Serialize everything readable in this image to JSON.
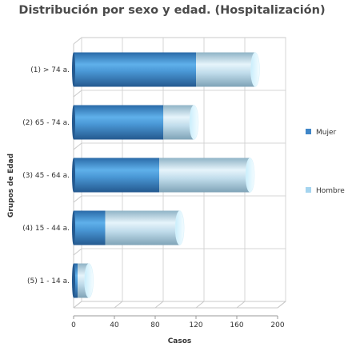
{
  "chart_data": {
    "type": "bar",
    "orientation": "horizontal",
    "stacked": true,
    "style": "3d-cylinder",
    "title": "Distribución por sexo y edad. (Hospitalización)",
    "xlabel": "Casos",
    "ylabel": "Grupos de Edad",
    "xlim": [
      0,
      200
    ],
    "x_ticks": [
      "0",
      "40",
      "80",
      "120",
      "160",
      "200"
    ],
    "categories": [
      "(1) > 74 a.",
      "(2) 65 - 74 a.",
      "(3) 45 - 64 a.",
      "(4) 15 - 44 a.",
      "(5) 1 - 14 a."
    ],
    "series": [
      {
        "name": "Mujer",
        "values": [
          120,
          88,
          84,
          31,
          4
        ],
        "color": "#3f86c8"
      },
      {
        "name": "Hombre",
        "values": [
          58,
          30,
          89,
          73,
          11
        ],
        "color": "#a4d4ef"
      }
    ],
    "grid": true,
    "legend_position": "right"
  }
}
